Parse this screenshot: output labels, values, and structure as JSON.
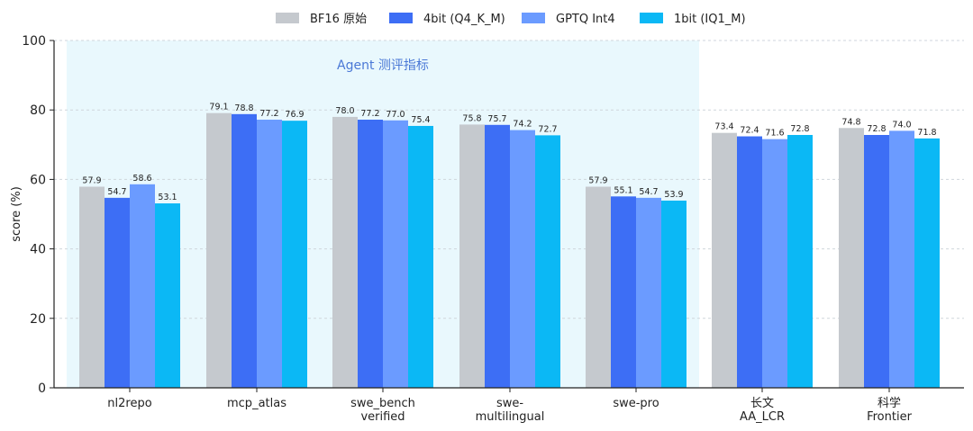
{
  "chart_data": {
    "type": "bar",
    "title": "",
    "xlabel": "",
    "ylabel": "score (%)",
    "ylim": [
      0,
      100
    ],
    "yticks": [
      0,
      20,
      40,
      60,
      80,
      100
    ],
    "grid": "horizontal dashed",
    "legend_position": "top",
    "categories": [
      [
        "nl2repo"
      ],
      [
        "mcp_atlas"
      ],
      [
        "swe_bench",
        "verified"
      ],
      [
        "swe-",
        "multilingual"
      ],
      [
        "swe-pro"
      ],
      [
        "长文",
        "AA_LCR"
      ],
      [
        "科学",
        "Frontier"
      ]
    ],
    "series": [
      {
        "name": "BF16 原始",
        "color": "#c5c9ce",
        "values": [
          57.9,
          79.1,
          78.0,
          75.8,
          57.9,
          73.4,
          74.8
        ]
      },
      {
        "name": "4bit (Q4_K_M)",
        "color": "#3d6ef5",
        "values": [
          54.7,
          78.8,
          77.2,
          75.7,
          55.1,
          72.4,
          72.8
        ]
      },
      {
        "name": "GPTQ Int4",
        "color": "#6b9bff",
        "values": [
          58.6,
          77.2,
          77.0,
          74.2,
          54.7,
          71.6,
          74.0
        ]
      },
      {
        "name": "1bit (IQ1_M)",
        "color": "#0bb8f5",
        "values": [
          53.1,
          76.9,
          75.4,
          72.7,
          53.9,
          72.8,
          71.8
        ]
      }
    ],
    "annotations": [
      {
        "text": "Agent 测评指标",
        "color": "#4a78d6",
        "background": "#e9f8fd",
        "covers_categories": [
          0,
          4
        ]
      }
    ]
  }
}
